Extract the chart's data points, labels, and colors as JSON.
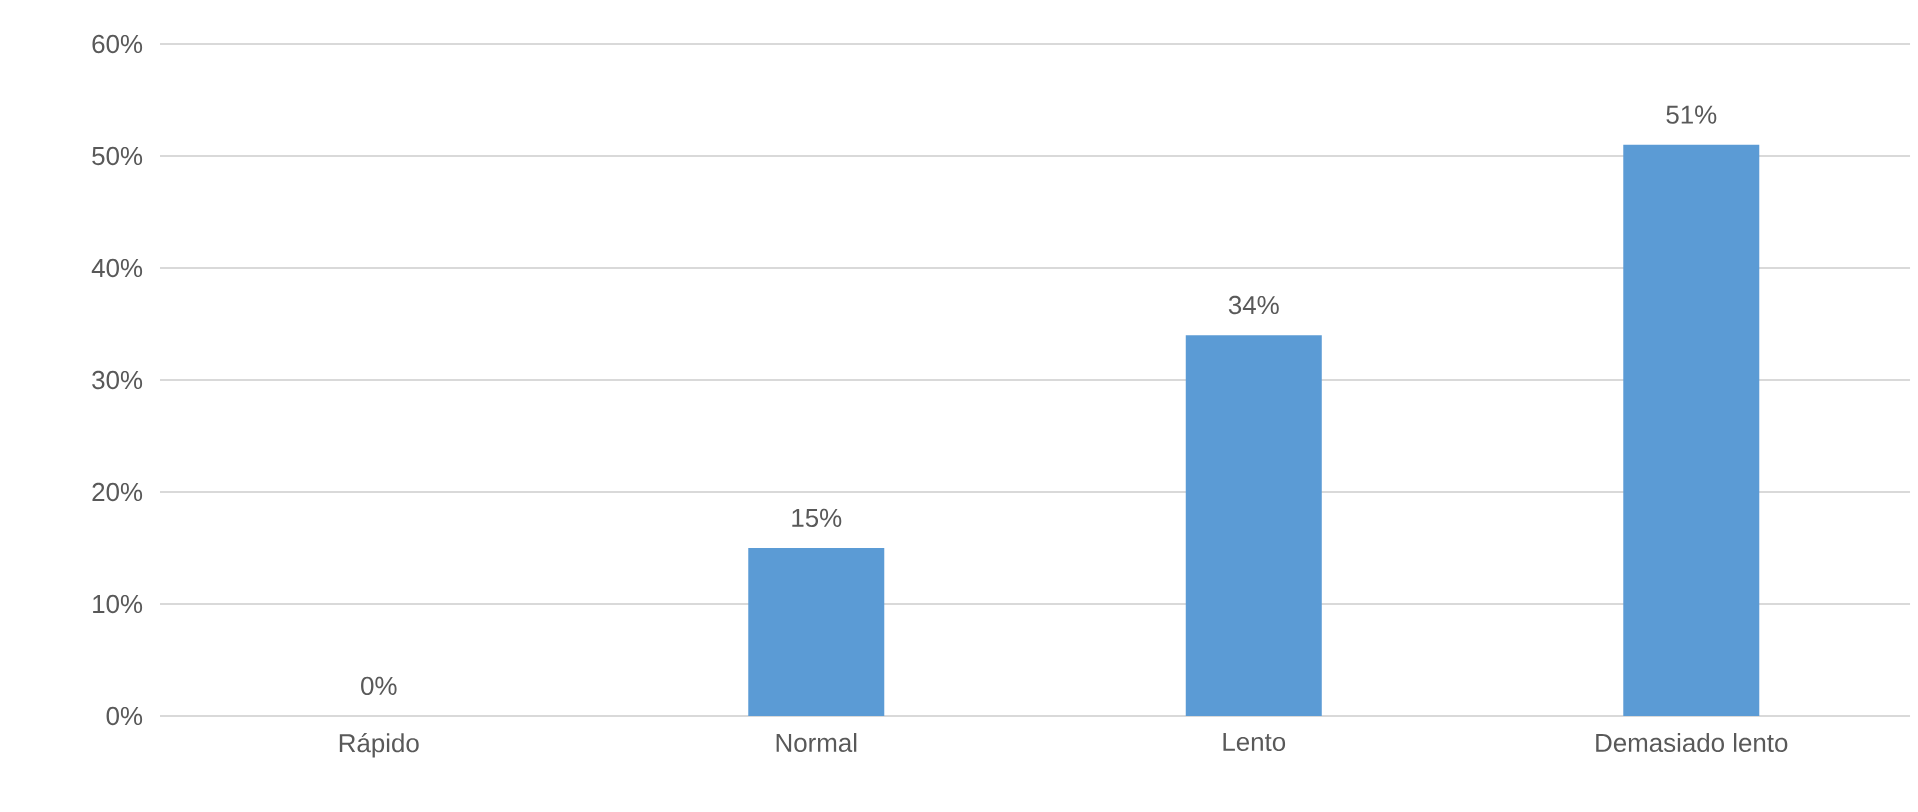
{
  "chart_data": {
    "type": "bar",
    "categories": [
      "Rápido",
      "Normal",
      "Lento",
      "Demasiado lento"
    ],
    "values": [
      0,
      15,
      34,
      51
    ],
    "value_labels": [
      "0%",
      "15%",
      "34%",
      "51%"
    ],
    "color": "#5b9bd5",
    "ylim": [
      0,
      60
    ],
    "yticks": [
      {
        "value": 0,
        "label": "0%"
      },
      {
        "value": 10,
        "label": "10%"
      },
      {
        "value": 20,
        "label": "20%"
      },
      {
        "value": 30,
        "label": "30%"
      },
      {
        "value": 40,
        "label": "40%"
      },
      {
        "value": 50,
        "label": "50%"
      },
      {
        "value": 60,
        "label": "60%"
      }
    ],
    "grid": "y"
  }
}
